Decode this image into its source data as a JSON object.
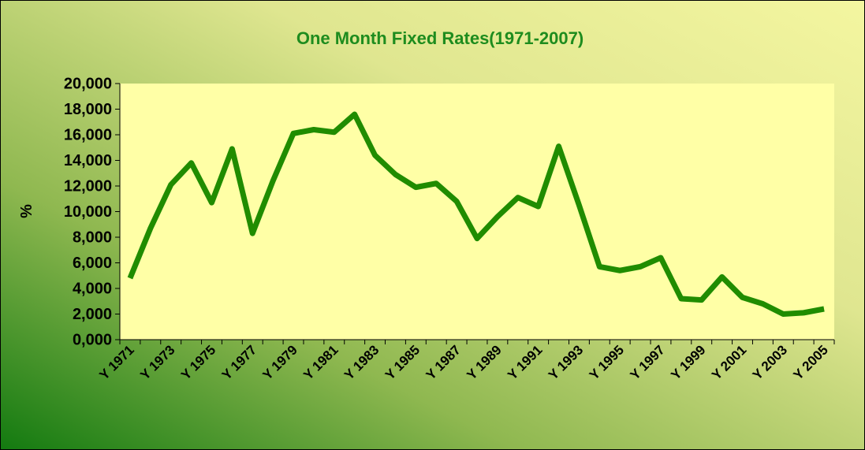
{
  "chart_data": {
    "type": "line",
    "title": "One Month Fixed Rates(1971-2007)",
    "y_label": "%",
    "categories": [
      "Y 1971",
      null,
      "Y 1973",
      null,
      "Y 1975",
      null,
      "Y 1977",
      null,
      "Y 1979",
      null,
      "Y 1981",
      null,
      "Y 1983",
      null,
      "Y 1985",
      null,
      "Y 1987",
      null,
      "Y 1989",
      null,
      "Y 1991",
      null,
      "Y 1993",
      null,
      "Y 1995",
      null,
      "Y 1997",
      null,
      "Y 1999",
      null,
      "Y 2001",
      null,
      "Y 2003",
      null,
      "Y 2005"
    ],
    "series": [
      {
        "name": "One Month Fixed Rates",
        "color": "#208c00",
        "values": [
          4.8,
          8.7,
          12.1,
          13.8,
          10.7,
          14.9,
          8.3,
          12.4,
          16.1,
          16.4,
          16.2,
          17.6,
          14.4,
          12.9,
          11.9,
          12.2,
          10.8,
          7.9,
          9.6,
          11.1,
          10.4,
          15.1,
          10.5,
          5.7,
          5.4,
          5.7,
          6.4,
          3.2,
          3.1,
          4.9,
          3.3,
          2.8,
          2.0,
          2.1,
          2.4
        ]
      }
    ],
    "ylim": [
      0,
      20
    ],
    "yticks": [
      {
        "value": 0,
        "label": "0,000"
      },
      {
        "value": 2,
        "label": "2,000"
      },
      {
        "value": 4,
        "label": "4,000"
      },
      {
        "value": 6,
        "label": "6,000"
      },
      {
        "value": 8,
        "label": "8,000"
      },
      {
        "value": 10,
        "label": "10,000"
      },
      {
        "value": 12,
        "label": "12,000"
      },
      {
        "value": 14,
        "label": "14,000"
      },
      {
        "value": 16,
        "label": "16,000"
      },
      {
        "value": 18,
        "label": "18,000"
      },
      {
        "value": 20,
        "label": "20,000"
      }
    ],
    "title_color": "#1e8c1e",
    "plot_background": "#ffffa6"
  }
}
